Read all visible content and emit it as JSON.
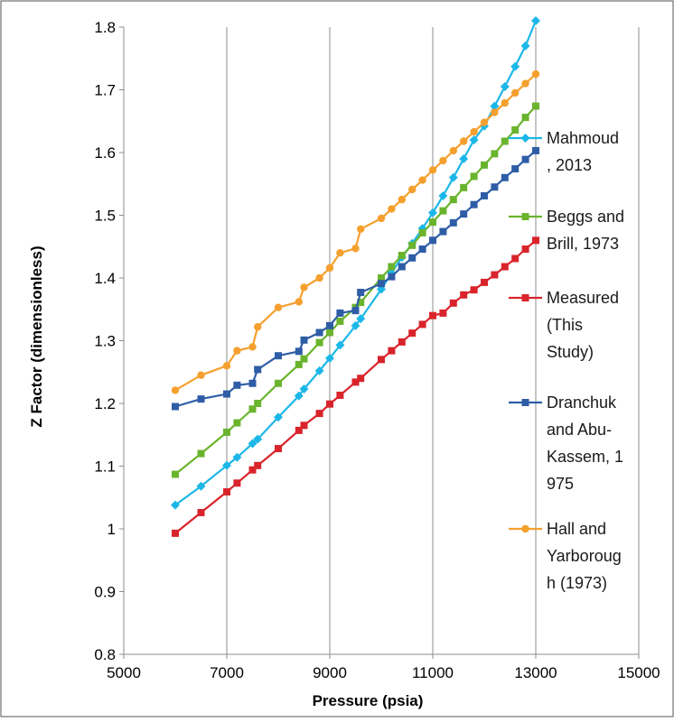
{
  "chart_data": {
    "type": "line",
    "title": "",
    "xlabel": "Pressure (psia)",
    "ylabel": "Z Factor (dimensionless)",
    "xlim": [
      5000,
      15000
    ],
    "ylim": [
      0.8,
      1.8
    ],
    "x_ticks": [
      5000,
      7000,
      9000,
      11000,
      13000,
      15000
    ],
    "x_tick_labels": [
      "5000",
      "7000",
      "9000",
      "11000",
      "13000",
      "15000"
    ],
    "y_ticks": [
      0.8,
      0.9,
      1.0,
      1.1,
      1.2,
      1.3,
      1.4,
      1.5,
      1.6,
      1.7,
      1.8
    ],
    "y_tick_labels": [
      "0.8",
      "0.9",
      "1",
      "1.1",
      "1.2",
      "1.3",
      "1.4",
      "1.5",
      "1.6",
      "1.7",
      "1.8"
    ],
    "grid": "vertical gridlines at x ticks",
    "legend_position": "right",
    "series": [
      {
        "name": "Mahmoud , 2013",
        "legend_lines": [
          "Mahmoud",
          ", 2013"
        ],
        "color": "#1cb7e8",
        "marker": "diamond",
        "x": [
          6000,
          6500,
          7000,
          7200,
          7500,
          7600,
          8000,
          8400,
          8500,
          8800,
          9000,
          9200,
          9500,
          9600,
          10000,
          10200,
          10400,
          10600,
          10800,
          11000,
          11200,
          11400,
          11600,
          11800,
          12000,
          12200,
          12400,
          12600,
          12800,
          13000
        ],
        "y": [
          1.038,
          1.068,
          1.101,
          1.114,
          1.136,
          1.143,
          1.178,
          1.212,
          1.223,
          1.252,
          1.272,
          1.293,
          1.324,
          1.335,
          1.382,
          1.408,
          1.433,
          1.455,
          1.479,
          1.504,
          1.531,
          1.56,
          1.59,
          1.62,
          1.642,
          1.674,
          1.705,
          1.737,
          1.77,
          1.81
        ]
      },
      {
        "name": "Beggs and Brill, 1973",
        "legend_lines": [
          "Beggs and",
          "Brill, 1973"
        ],
        "color": "#6ab42d",
        "marker": "square",
        "x": [
          6000,
          6500,
          7000,
          7200,
          7500,
          7600,
          8000,
          8400,
          8500,
          8800,
          9000,
          9200,
          9500,
          9600,
          10000,
          10200,
          10400,
          10600,
          10800,
          11000,
          11200,
          11400,
          11600,
          11800,
          12000,
          12200,
          12400,
          12600,
          12800,
          13000
        ],
        "y": [
          1.087,
          1.12,
          1.154,
          1.169,
          1.191,
          1.2,
          1.232,
          1.262,
          1.271,
          1.297,
          1.313,
          1.331,
          1.353,
          1.361,
          1.4,
          1.418,
          1.436,
          1.452,
          1.472,
          1.489,
          1.507,
          1.525,
          1.544,
          1.562,
          1.58,
          1.598,
          1.618,
          1.636,
          1.656,
          1.674
        ]
      },
      {
        "name": "Measured (This Study)",
        "legend_lines": [
          "Measured",
          "(This",
          "Study)"
        ],
        "color": "#d9242b",
        "marker": "square",
        "x": [
          6000,
          6500,
          7000,
          7200,
          7500,
          7600,
          8000,
          8400,
          8500,
          8800,
          9000,
          9200,
          9500,
          9600,
          10000,
          10200,
          10400,
          10600,
          10800,
          11000,
          11200,
          11400,
          11600,
          11800,
          12000,
          12200,
          12400,
          12600,
          12800,
          13000
        ],
        "y": [
          0.993,
          1.026,
          1.059,
          1.073,
          1.094,
          1.101,
          1.128,
          1.157,
          1.165,
          1.184,
          1.199,
          1.213,
          1.234,
          1.24,
          1.27,
          1.284,
          1.298,
          1.312,
          1.326,
          1.34,
          1.344,
          1.36,
          1.373,
          1.381,
          1.393,
          1.405,
          1.418,
          1.431,
          1.446,
          1.46
        ]
      },
      {
        "name": "Dranchuk and Abu-Kassem, 1 975",
        "legend_lines": [
          "Dranchuk",
          "and Abu-",
          "Kassem, 1",
          "975"
        ],
        "color": "#2e5da6",
        "marker": "square",
        "x": [
          6000,
          6500,
          7000,
          7200,
          7500,
          7600,
          8000,
          8400,
          8500,
          8800,
          9000,
          9200,
          9500,
          9600,
          10000,
          10200,
          10400,
          10600,
          10800,
          11000,
          11200,
          11400,
          11600,
          11800,
          12000,
          12200,
          12400,
          12600,
          12800,
          13000
        ],
        "y": [
          1.195,
          1.207,
          1.215,
          1.229,
          1.232,
          1.254,
          1.276,
          1.283,
          1.301,
          1.313,
          1.324,
          1.344,
          1.348,
          1.377,
          1.391,
          1.402,
          1.418,
          1.432,
          1.446,
          1.46,
          1.474,
          1.488,
          1.502,
          1.517,
          1.531,
          1.545,
          1.56,
          1.574,
          1.589,
          1.603
        ]
      },
      {
        "name": "Hall and Yarborough (1973)",
        "legend_lines": [
          "Hall  and",
          "Yarboroug",
          "h (1973)"
        ],
        "color": "#f5a02e",
        "marker": "circle",
        "x": [
          6000,
          6500,
          7000,
          7200,
          7500,
          7600,
          8000,
          8400,
          8500,
          8800,
          9000,
          9200,
          9500,
          9600,
          10000,
          10200,
          10400,
          10600,
          10800,
          11000,
          11200,
          11400,
          11600,
          11800,
          12000,
          12200,
          12400,
          12600,
          12800,
          13000
        ],
        "y": [
          1.221,
          1.245,
          1.26,
          1.284,
          1.29,
          1.322,
          1.353,
          1.362,
          1.385,
          1.4,
          1.416,
          1.44,
          1.447,
          1.478,
          1.495,
          1.51,
          1.525,
          1.541,
          1.556,
          1.572,
          1.587,
          1.603,
          1.618,
          1.633,
          1.648,
          1.664,
          1.679,
          1.695,
          1.71,
          1.725
        ]
      }
    ]
  }
}
